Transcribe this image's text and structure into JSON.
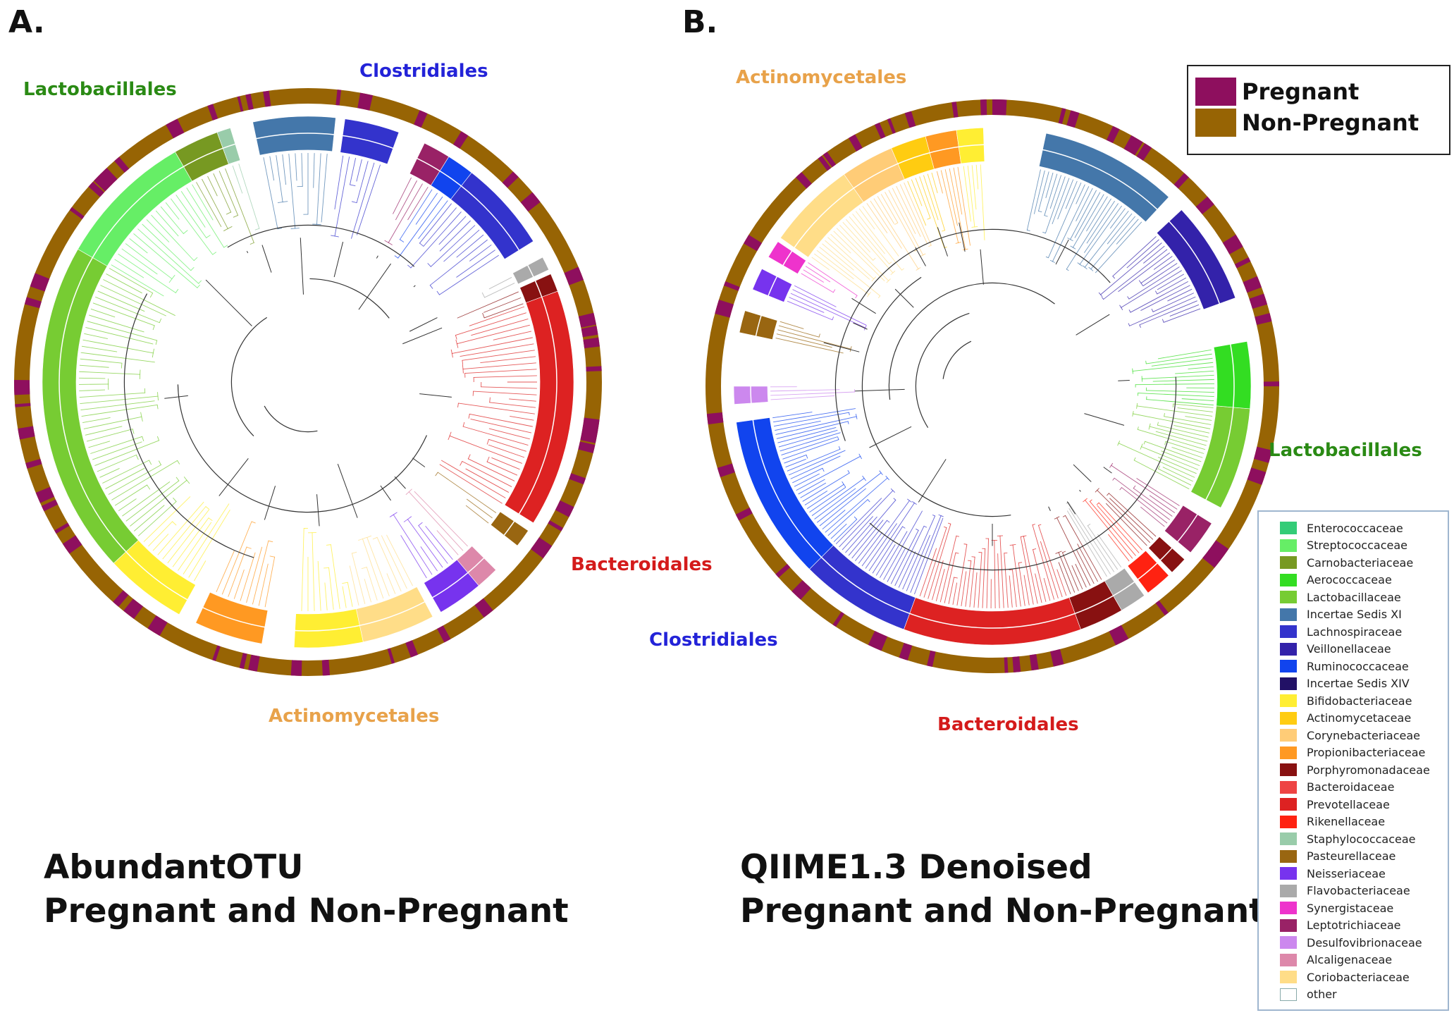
{
  "panel_a": {
    "letter": "A.",
    "labels": {
      "lactobacillales": "Lactobacillales",
      "clostridiales": "Clostridiales",
      "bacteroidales": "Bacteroidales",
      "actinomycetales": "Actinomycetales"
    },
    "caption_line1": "AbundantOTU",
    "caption_line2": "Pregnant and Non-Pregnant"
  },
  "panel_b": {
    "letter": "B.",
    "labels": {
      "actinomycetales": "Actinomycetales",
      "lactobacillales": "Lactobacillales",
      "clostridiales": "Clostridiales",
      "bacteroidales": "Bacteroidales"
    },
    "caption_line1": "QIIME1.3 Denoised",
    "caption_line2": "Pregnant and Non-Pregnant"
  },
  "clade_colors": {
    "lactobacillales": "#2a8a14",
    "clostridiales": "#2323d8",
    "bacteroidales": "#d41b1b",
    "actinomycetales": "#e8a24a"
  },
  "status_legend": [
    {
      "label": "Pregnant",
      "color": "#8e0f5e"
    },
    {
      "label": "Non-Pregnant",
      "color": "#976404"
    }
  ],
  "family_legend": [
    {
      "label": "Enterococcaceae",
      "color": "#33cc77"
    },
    {
      "label": "Streptococcaceae",
      "color": "#66ee66"
    },
    {
      "label": "Carnobacteriaceae",
      "color": "#779922"
    },
    {
      "label": "Aerococcaceae",
      "color": "#33dd22"
    },
    {
      "label": "Lactobacillaceae",
      "color": "#77cc33"
    },
    {
      "label": "Incertae Sedis XI",
      "color": "#4477aa"
    },
    {
      "label": "Lachnospiraceae",
      "color": "#3333cc"
    },
    {
      "label": "Veillonellaceae",
      "color": "#3322aa"
    },
    {
      "label": "Ruminococcaceae",
      "color": "#1144ee"
    },
    {
      "label": "Incertae Sedis XIV",
      "color": "#221166"
    },
    {
      "label": "Bifidobacteriaceae",
      "color": "#ffee33"
    },
    {
      "label": "Actinomycetaceae",
      "color": "#ffcc11"
    },
    {
      "label": "Corynebacteriaceae",
      "color": "#ffcc77"
    },
    {
      "label": "Propionibacteriaceae",
      "color": "#ff9922"
    },
    {
      "label": "Porphyromonadaceae",
      "color": "#881111"
    },
    {
      "label": "Bacteroidaceae",
      "color": "#ee4444"
    },
    {
      "label": "Prevotellaceae",
      "color": "#dd2222"
    },
    {
      "label": "Rikenellaceae",
      "color": "#ff2211"
    },
    {
      "label": "Staphylococcaceae",
      "color": "#99ccaa"
    },
    {
      "label": "Pasteurellaceae",
      "color": "#996611"
    },
    {
      "label": "Neisseriaceae",
      "color": "#7733ee"
    },
    {
      "label": "Flavobacteriaceae",
      "color": "#aaaaaa"
    },
    {
      "label": "Synergistaceae",
      "color": "#ee33cc"
    },
    {
      "label": "Leptotrichiaceae",
      "color": "#992266"
    },
    {
      "label": "Desulfovibrionaceae",
      "color": "#cc88ee"
    },
    {
      "label": "Alcaligenaceae",
      "color": "#dd88aa"
    },
    {
      "label": "Coriobacteriaceae",
      "color": "#ffdd88"
    },
    {
      "label": "other",
      "color": "#ffffff"
    }
  ]
}
